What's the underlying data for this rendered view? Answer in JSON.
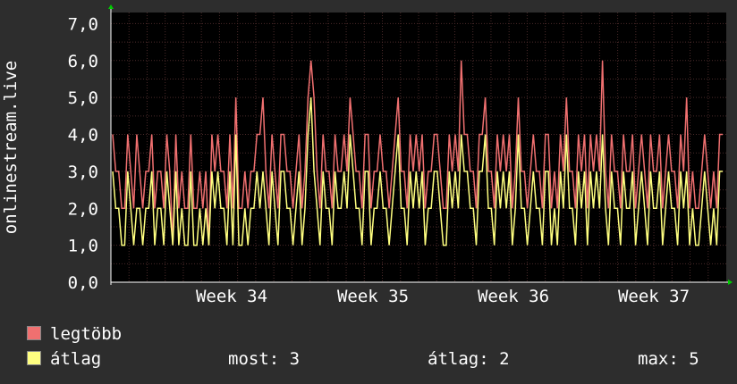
{
  "chart_data": {
    "type": "line",
    "ylabel": "onlinestream.live",
    "yticks": [
      "0,0",
      "1,0",
      "2,0",
      "3,0",
      "4,0",
      "5,0",
      "6,0",
      "7,0"
    ],
    "ylim": [
      0,
      7.3
    ],
    "xticks": [
      "Week 34",
      "Week 35",
      "Week 36",
      "Week 37"
    ],
    "grid": true,
    "samples": 204,
    "series": [
      {
        "name": "legtöbb",
        "color": "#f07070",
        "values": [
          4,
          3,
          3,
          2,
          2,
          4,
          3,
          2,
          4,
          3,
          2,
          3,
          3,
          4,
          2,
          3,
          3,
          2,
          4,
          3,
          1,
          4,
          2,
          3,
          2,
          2,
          4,
          2,
          2,
          3,
          2,
          3,
          1,
          4,
          3,
          4,
          3,
          3,
          2,
          4,
          2,
          5,
          2,
          2,
          3,
          2,
          3,
          3,
          4,
          4,
          5,
          3,
          2,
          4,
          3,
          2,
          4,
          4,
          3,
          3,
          2,
          3,
          4,
          2,
          3,
          5,
          6,
          5,
          3,
          2,
          4,
          3,
          3,
          2,
          4,
          3,
          3,
          4,
          3,
          5,
          4,
          3,
          3,
          2,
          4,
          4,
          2,
          3,
          3,
          4,
          3,
          3,
          2,
          3,
          4,
          5,
          3,
          3,
          2,
          4,
          3,
          4,
          3,
          4,
          2,
          3,
          3,
          4,
          4,
          3,
          2,
          2,
          4,
          3,
          4,
          3,
          6,
          4,
          4,
          3,
          3,
          2,
          4,
          4,
          5,
          3,
          3,
          2,
          4,
          3,
          4,
          3,
          4,
          2,
          3,
          5,
          3,
          3,
          2,
          3,
          4,
          3,
          3,
          2,
          4,
          4,
          2,
          3,
          2,
          4,
          3,
          5,
          3,
          3,
          2,
          4,
          3,
          4,
          2,
          4,
          3,
          4,
          3,
          6,
          3,
          2,
          4,
          3,
          3,
          2,
          4,
          3,
          3,
          4,
          2,
          3,
          4,
          3,
          2,
          4,
          3,
          3,
          4,
          2,
          3,
          4,
          3,
          3,
          2,
          4,
          3,
          5,
          2,
          3,
          2,
          2,
          3,
          4,
          3,
          2,
          3,
          2,
          4,
          4
        ]
      },
      {
        "name": "átlag",
        "color": "#ffff80",
        "values": [
          3,
          2,
          2,
          1,
          1,
          3,
          2,
          1,
          2,
          2,
          1,
          2,
          2,
          3,
          1,
          2,
          2,
          1,
          3,
          2,
          1,
          3,
          1,
          2,
          1,
          1,
          3,
          1,
          1,
          2,
          1,
          2,
          1,
          3,
          2,
          3,
          2,
          2,
          1,
          3,
          1,
          4,
          1,
          1,
          2,
          1,
          2,
          2,
          3,
          2,
          3,
          2,
          1,
          3,
          2,
          1,
          3,
          3,
          2,
          2,
          1,
          2,
          3,
          1,
          2,
          4,
          5,
          3,
          2,
          1,
          3,
          2,
          2,
          1,
          3,
          2,
          2,
          3,
          2,
          4,
          3,
          2,
          2,
          1,
          3,
          3,
          1,
          2,
          2,
          3,
          2,
          2,
          1,
          2,
          3,
          4,
          2,
          2,
          1,
          3,
          2,
          3,
          2,
          3,
          1,
          2,
          2,
          3,
          3,
          2,
          1,
          1,
          3,
          2,
          3,
          2,
          4,
          3,
          3,
          2,
          2,
          1,
          3,
          3,
          4,
          2,
          2,
          1,
          3,
          2,
          3,
          2,
          3,
          1,
          2,
          4,
          2,
          2,
          1,
          2,
          3,
          2,
          2,
          1,
          3,
          3,
          1,
          2,
          1,
          3,
          2,
          4,
          2,
          2,
          1,
          3,
          2,
          3,
          1,
          3,
          2,
          3,
          2,
          4,
          2,
          1,
          3,
          2,
          2,
          1,
          3,
          2,
          2,
          3,
          1,
          2,
          3,
          2,
          1,
          3,
          2,
          2,
          3,
          1,
          2,
          3,
          2,
          2,
          1,
          3,
          2,
          3,
          1,
          2,
          1,
          1,
          2,
          3,
          2,
          1,
          2,
          1,
          3,
          3
        ]
      }
    ]
  },
  "legend": {
    "max_label": "legtöbb",
    "avg_label": "átlag"
  },
  "stats": {
    "now": "most: 3",
    "avg": "átlag: 2",
    "max": "max: 5"
  },
  "colors": {
    "background": "#2d2d2d",
    "plot_background": "#000000",
    "grid": "#4a2a2a",
    "axis": "#ffffff",
    "arrow": "#00cc00"
  }
}
